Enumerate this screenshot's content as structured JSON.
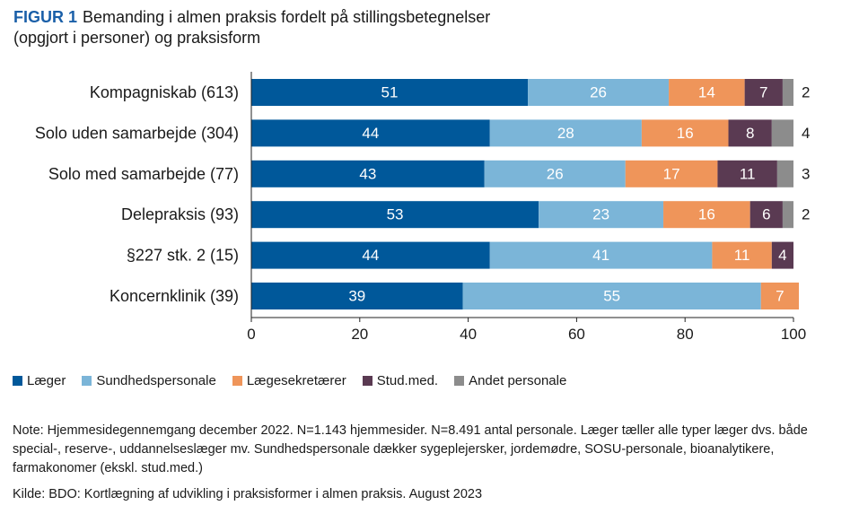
{
  "figure": {
    "label": "FIGUR 1",
    "title_line1": "Bemanding i almen praksis fordelt på stillingsbetegnelser",
    "title_line2": "(opgjort i personer) og praksisform"
  },
  "chart_data": {
    "type": "bar",
    "orientation": "horizontal",
    "stacked": true,
    "categories": [
      "Kompagniskab (613)",
      "Solo uden samarbejde (304)",
      "Solo med samarbejde (77)",
      "Delepraksis (93)",
      "§227 stk. 2 (15)",
      "Koncernklinik (39)"
    ],
    "series": [
      {
        "name": "Læger",
        "color": "#00589a",
        "label_color": "#ffffff",
        "values": [
          51,
          44,
          43,
          53,
          44,
          39
        ]
      },
      {
        "name": "Sundhedspersonale",
        "color": "#7bb5d8",
        "label_color": "#ffffff",
        "values": [
          26,
          28,
          26,
          23,
          41,
          55
        ]
      },
      {
        "name": "Lægesekretærer",
        "color": "#ef955a",
        "label_color": "#ffffff",
        "values": [
          14,
          16,
          17,
          16,
          11,
          7
        ]
      },
      {
        "name": "Stud.med.",
        "color": "#5a3a52",
        "label_color": "#ffffff",
        "values": [
          7,
          8,
          11,
          6,
          4,
          0
        ]
      },
      {
        "name": "Andet personale",
        "color": "#8c8c8c",
        "label_color": "#1a1a1a",
        "values": [
          2,
          4,
          3,
          2,
          0,
          0
        ]
      }
    ],
    "xlim": [
      0,
      100
    ],
    "xticks": [
      0,
      20,
      40,
      60,
      80,
      100
    ],
    "xlabel": "",
    "ylabel": "",
    "grid": false,
    "legend_position": "bottom"
  },
  "notes": {
    "note": "Note: Hjemmesidegennemgang december 2022. N=1.143 hjemmesider. N=8.491 antal personale. Læger tæller alle typer læger dvs. både special-, reserve-, uddannelseslæger mv. Sundhedspersonale dækker sygeplejersker, jordemødre, SOSU-personale, bioanalytikere, farmakonomer (ekskl. stud.med.)",
    "source": "Kilde: BDO: Kortlægning af udvikling i praksisformer i almen praksis. August 2023"
  }
}
